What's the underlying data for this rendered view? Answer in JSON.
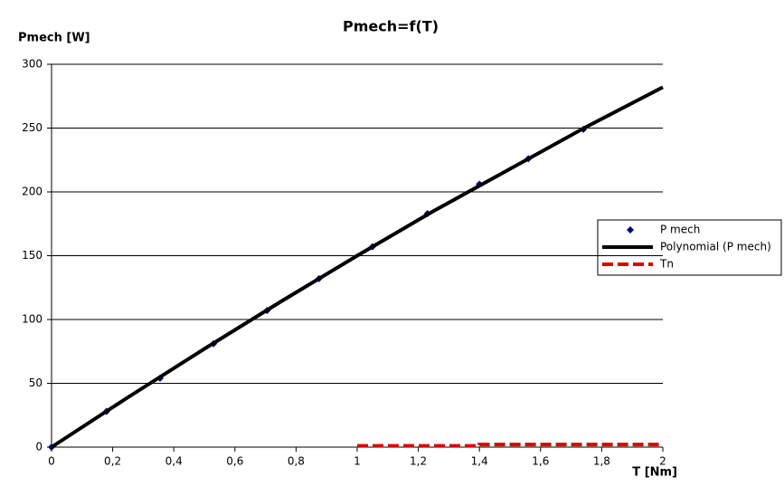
{
  "chart_data": {
    "type": "scatter",
    "title": "Pmech=f(T)",
    "y_label": "Pmech [W]",
    "x_label": "T [Nm]",
    "xlim": [
      0,
      2
    ],
    "ylim": [
      0,
      300
    ],
    "xticks": [
      0,
      {
        "value": 0.2,
        "label": "0,2"
      },
      {
        "value": 0.4,
        "label": "0,4"
      },
      {
        "value": 0.6,
        "label": "0,6"
      },
      {
        "value": 0.8,
        "label": "0,8"
      },
      1,
      {
        "value": 1.2,
        "label": "1,2"
      },
      {
        "value": 1.4,
        "label": "1,4"
      },
      {
        "value": 1.6,
        "label": "1,6"
      },
      {
        "value": 1.8,
        "label": "1,8"
      },
      2
    ],
    "yticks": [
      0,
      50,
      100,
      150,
      200,
      250,
      300
    ],
    "grid": true,
    "legend": "right",
    "series": [
      {
        "name": "P mech",
        "type": "scatter",
        "color": "#000080",
        "x": [
          0,
          0.18,
          0.355,
          0.53,
          0.705,
          0.875,
          1.05,
          1.23,
          1.4,
          1.56,
          1.74
        ],
        "values": [
          0,
          28,
          54,
          81,
          107,
          132,
          157,
          183,
          206,
          226,
          249
        ]
      },
      {
        "name": "Polynomial (P mech)",
        "type": "line",
        "color": "#000000",
        "x": [
          0,
          0.25,
          0.5,
          0.75,
          1,
          1.25,
          1.5,
          1.75,
          2
        ],
        "values": [
          0,
          39,
          77,
          114,
          150,
          185,
          218,
          251,
          282
        ]
      },
      {
        "name": "Tn",
        "type": "dashed",
        "color": "#dd0000",
        "x": [
          1,
          1.4,
          1.4,
          2
        ],
        "values": [
          1,
          1,
          2,
          2
        ]
      }
    ]
  }
}
